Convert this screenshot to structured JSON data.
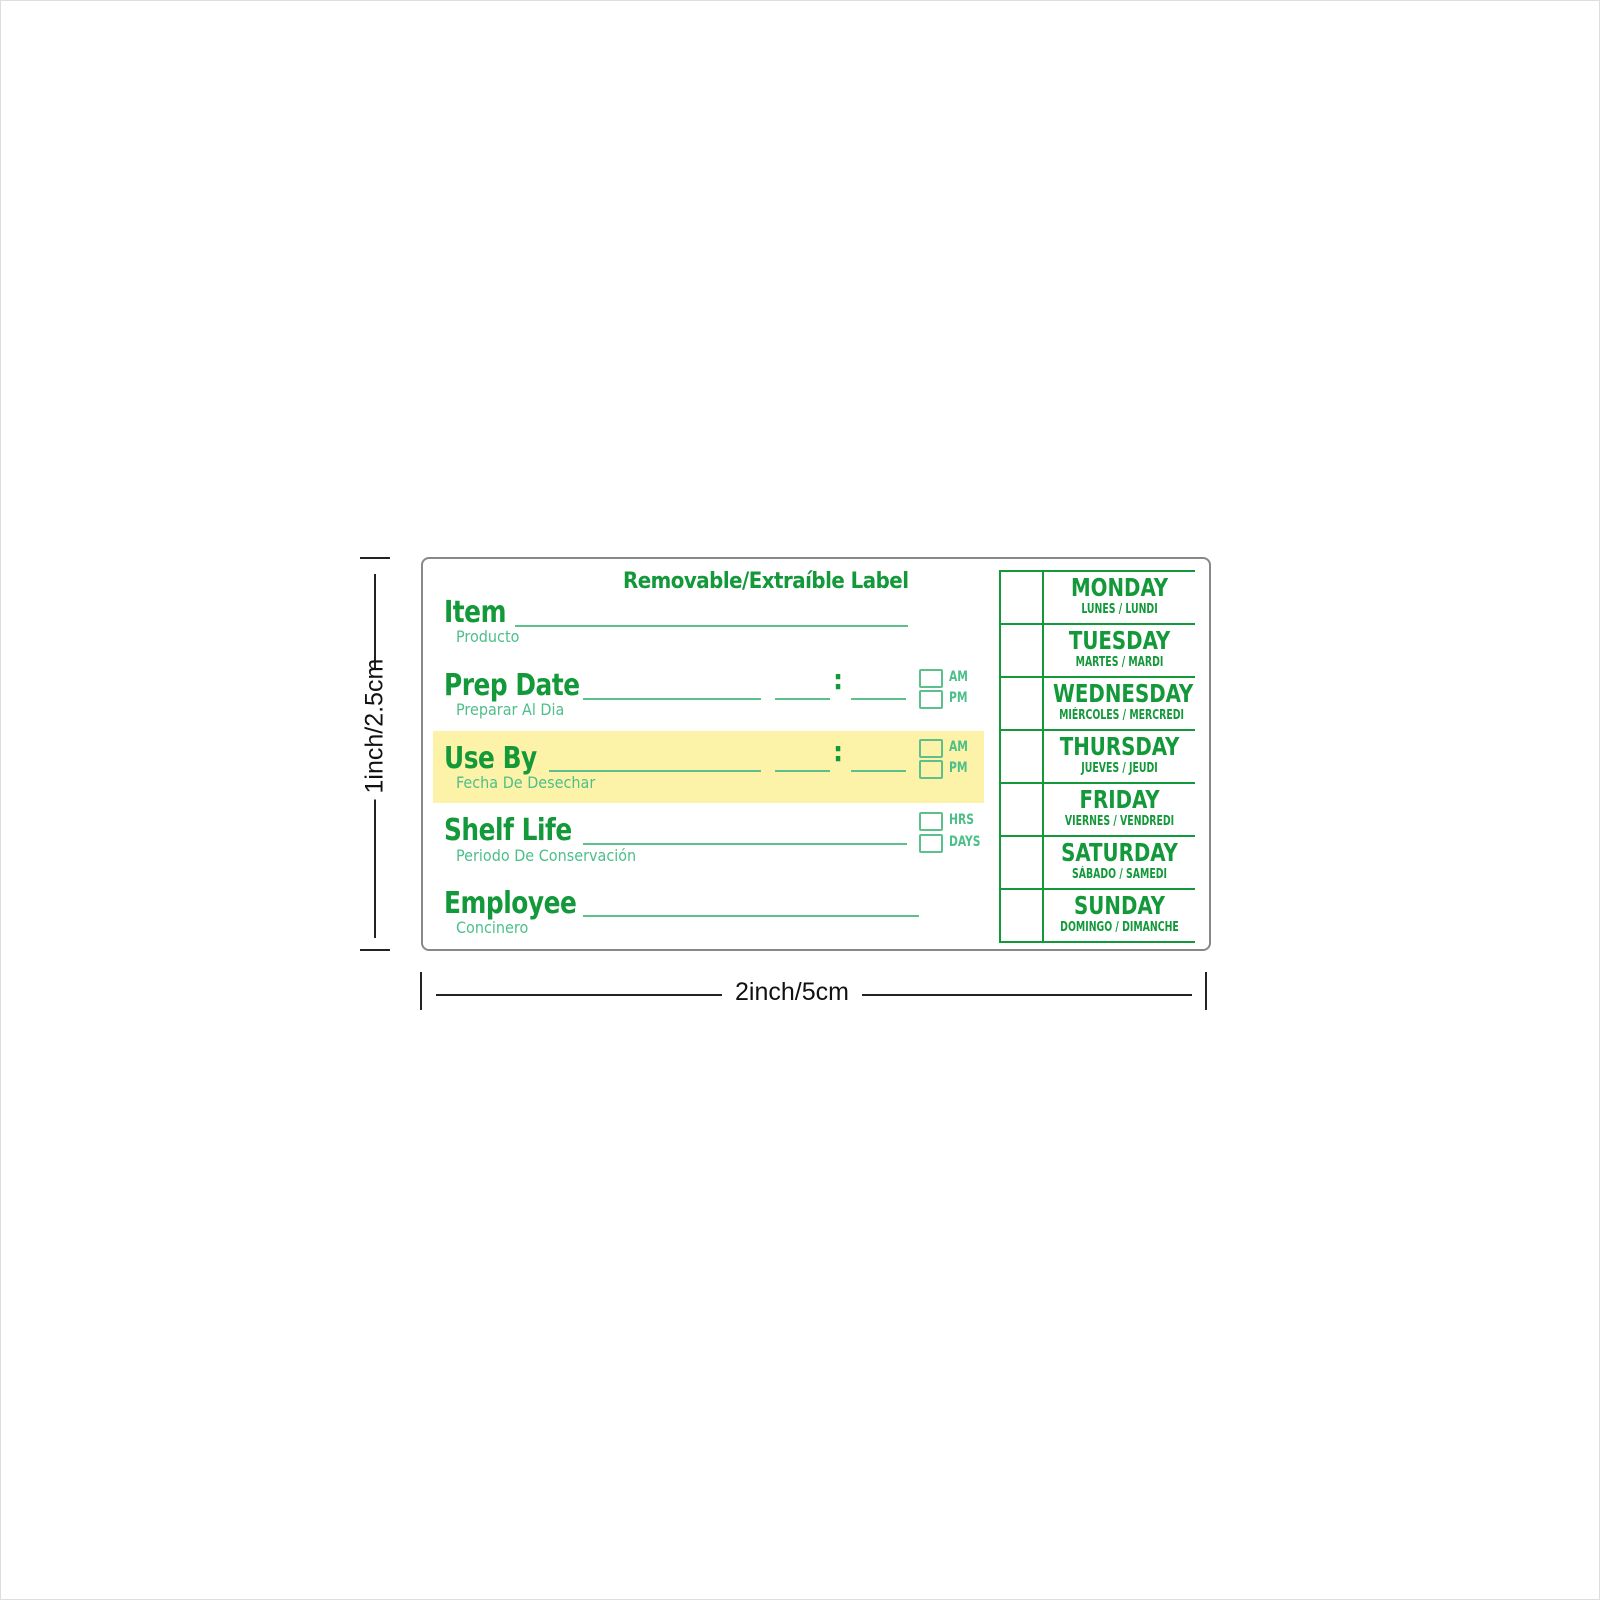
{
  "label": {
    "title": "Removable/Extraíble Label",
    "fields": [
      {
        "label": "Item",
        "sub": "Producto"
      },
      {
        "label": "Prep Date",
        "sub": "Preparar Al Dia",
        "options": [
          "AM",
          "PM"
        ]
      },
      {
        "label": "Use By",
        "sub": "Fecha De Desechar",
        "options": [
          "AM",
          "PM"
        ]
      },
      {
        "label": "Shelf Life",
        "sub": "Periodo De Conservación",
        "options": [
          "HRS",
          "DAYS"
        ]
      },
      {
        "label": "Employee",
        "sub": "Concinero"
      }
    ],
    "time_separator": ":",
    "days": [
      {
        "name": "MONDAY",
        "sub": "LUNES / LUNDI"
      },
      {
        "name": "TUESDAY",
        "sub": "MARTES / MARDI"
      },
      {
        "name": "WEDNESDAY",
        "sub": "MIÉRCOLES / MERCREDI"
      },
      {
        "name": "THURSDAY",
        "sub": "JUEVES / JEUDI"
      },
      {
        "name": "FRIDAY",
        "sub": "VIERNES / VENDREDI"
      },
      {
        "name": "SATURDAY",
        "sub": "SÁBADO / SAMEDI"
      },
      {
        "name": "SUNDAY",
        "sub": "DOMINGO / DIMANCHE"
      }
    ],
    "colors": {
      "text": "#13983a",
      "lines": "#5cc08d",
      "highlight": "#fdf3a8"
    }
  },
  "dimensions": {
    "height": "1inch/2.5cm",
    "width": "2inch/5cm"
  }
}
